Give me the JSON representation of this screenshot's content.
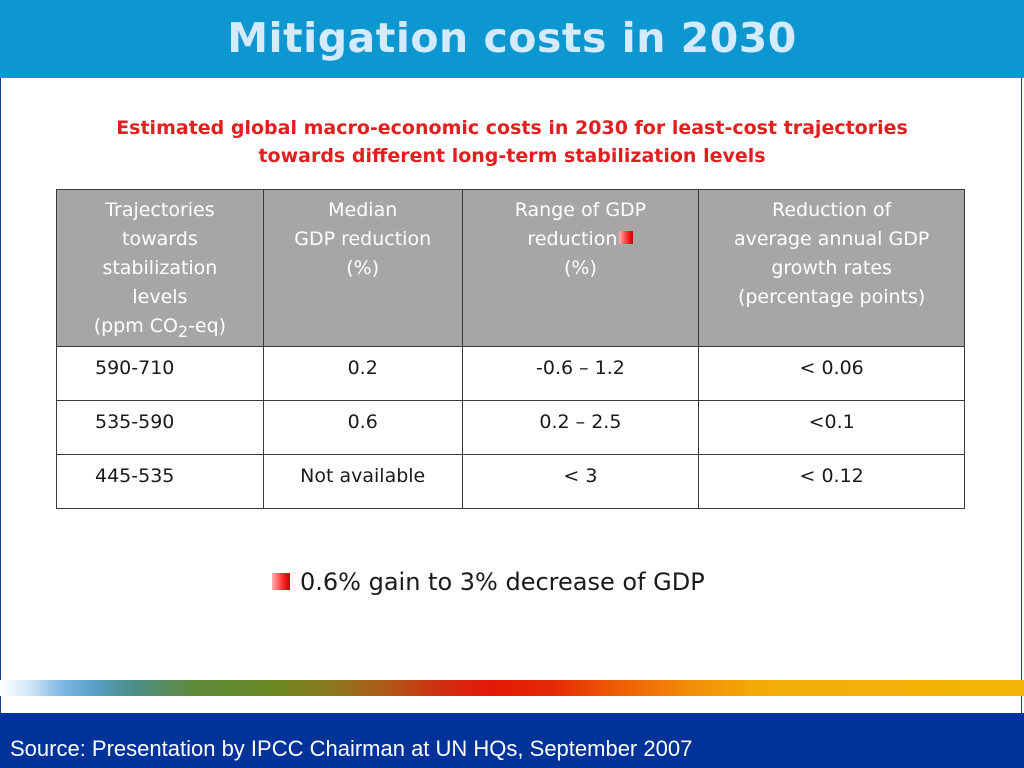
{
  "slide": {
    "title": "Mitigation costs in 2030",
    "subtitle_line1": "Estimated global macro-economic costs in 2030 for least-cost trajectories",
    "subtitle_line2": "towards different long-term stabilization levels"
  },
  "table": {
    "headers": [
      [
        "Trajectories",
        "towards",
        "stabilization",
        "levels",
        "(ppm CO"
      ],
      [
        "Median",
        "GDP reduction",
        "(%)"
      ],
      [
        "Range of GDP",
        "reduction",
        "(%)"
      ],
      [
        "Reduction of",
        "average annual GDP",
        "growth rates",
        "(percentage points)"
      ]
    ],
    "co2_subscript": "2",
    "co2_suffix": "-eq)",
    "rows": [
      [
        "590-710",
        "0.2",
        "-0.6 – 1.2",
        "< 0.06"
      ],
      [
        "535-590",
        "0.6",
        "0.2 – 2.5",
        "<0.1"
      ],
      [
        "445-535",
        "Not available",
        "< 3",
        "< 0.12"
      ]
    ]
  },
  "footnote": "0.6% gain to 3% decrease of GDP",
  "source": "Source: Presentation by IPCC Chairman at UN HQs, September 2007",
  "colors": {
    "title_bar": "#0d97d0",
    "title_text": "#d4ebff",
    "subtitle": "#e02020",
    "header_bg": "#a6a6a6",
    "source_bar": "#003399",
    "marker": "#ff2a2a"
  }
}
